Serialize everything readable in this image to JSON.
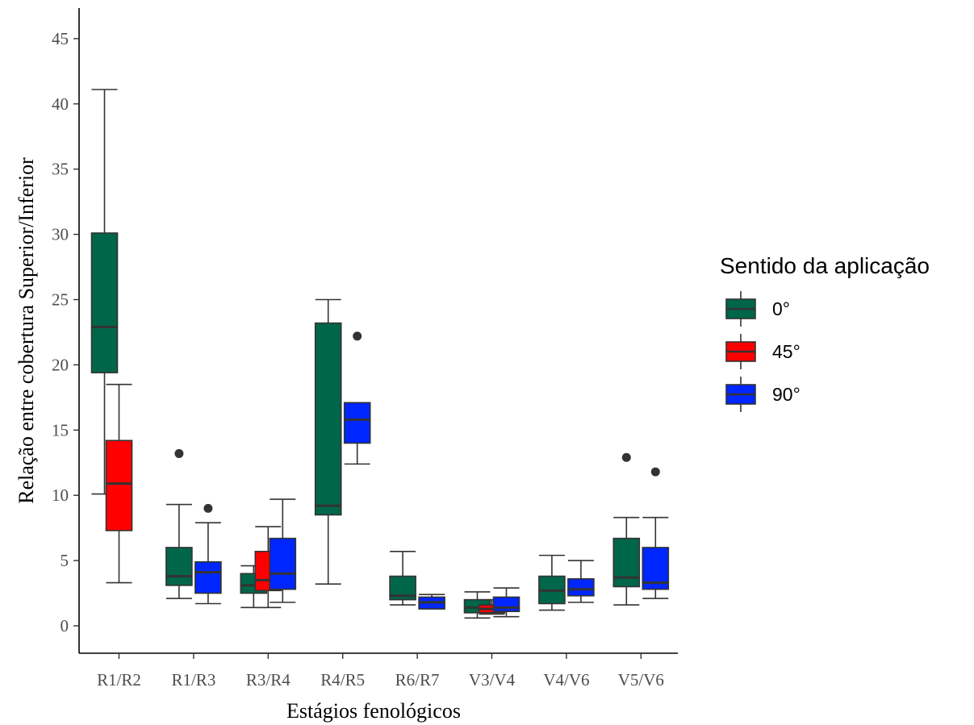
{
  "chart_data": {
    "type": "boxplot",
    "title": "",
    "xlabel": "Estágios fenológicos",
    "ylabel": "Relação entre cobertura Superior/Inferior",
    "ylim": [
      -2.2,
      47
    ],
    "yticks": [
      0,
      5,
      10,
      15,
      20,
      25,
      30,
      35,
      40,
      45
    ],
    "grid": false,
    "legend": {
      "title": "Sentido da aplicação",
      "placement": "right"
    },
    "categories": [
      "R1/R2",
      "R1/R3",
      "R3/R4",
      "R4/R5",
      "R6/R7",
      "V3/V4",
      "V4/V6",
      "V5/V6"
    ],
    "series": [
      {
        "name": "0°",
        "color": "#00664a",
        "boxes": [
          {
            "category": "R1/R2",
            "min": 10.1,
            "q1": 19.4,
            "median": 22.9,
            "q3": 30.1,
            "max": 41.1,
            "outliers": []
          },
          {
            "category": "R1/R3",
            "min": 2.1,
            "q1": 3.1,
            "median": 3.8,
            "q3": 6.0,
            "max": 9.3,
            "outliers": [
              13.2
            ]
          },
          {
            "category": "R3/R4",
            "min": 1.4,
            "q1": 2.5,
            "median": 3.1,
            "q3": 4.0,
            "max": 4.6,
            "outliers": []
          },
          {
            "category": "R4/R5",
            "min": 3.2,
            "q1": 8.5,
            "median": 9.2,
            "q3": 23.2,
            "max": 25.0,
            "outliers": []
          },
          {
            "category": "R6/R7",
            "min": 1.6,
            "q1": 2.0,
            "median": 2.3,
            "q3": 3.8,
            "max": 5.7,
            "outliers": []
          },
          {
            "category": "V3/V4",
            "min": 0.6,
            "q1": 1.0,
            "median": 1.4,
            "q3": 2.0,
            "max": 2.6,
            "outliers": []
          },
          {
            "category": "V4/V6",
            "min": 1.2,
            "q1": 1.7,
            "median": 2.7,
            "q3": 3.8,
            "max": 5.4,
            "outliers": []
          },
          {
            "category": "V5/V6",
            "min": 1.6,
            "q1": 3.0,
            "median": 3.7,
            "q3": 6.7,
            "max": 8.3,
            "outliers": [
              12.9
            ]
          }
        ]
      },
      {
        "name": "45°",
        "color": "#ff0000",
        "boxes": [
          {
            "category": "R1/R2",
            "min": 3.3,
            "q1": 7.3,
            "median": 10.9,
            "q3": 14.2,
            "max": 18.5,
            "outliers": []
          },
          {
            "category": "R3/R4",
            "min": 1.4,
            "q1": 2.7,
            "median": 3.5,
            "q3": 5.7,
            "max": 7.6,
            "outliers": []
          },
          {
            "category": "V3/V4",
            "min": 0.9,
            "q1": 1.0,
            "median": 1.3,
            "q3": 1.6,
            "max": 2.0,
            "outliers": []
          }
        ]
      },
      {
        "name": "90°",
        "color": "#0026ff",
        "boxes": [
          {
            "category": "R1/R3",
            "min": 1.7,
            "q1": 2.5,
            "median": 4.1,
            "q3": 4.9,
            "max": 7.9,
            "outliers": [
              9.0
            ]
          },
          {
            "category": "R3/R4",
            "min": 1.8,
            "q1": 2.8,
            "median": 4.0,
            "q3": 6.7,
            "max": 9.7,
            "outliers": []
          },
          {
            "category": "R4/R5",
            "min": 12.4,
            "q1": 14.0,
            "median": 15.8,
            "q3": 17.1,
            "max": 17.1,
            "outliers": [
              22.2
            ]
          },
          {
            "category": "R6/R7",
            "min": 1.3,
            "q1": 1.3,
            "median": 1.8,
            "q3": 2.2,
            "max": 2.4,
            "outliers": []
          },
          {
            "category": "V3/V4",
            "min": 0.7,
            "q1": 1.1,
            "median": 1.4,
            "q3": 2.2,
            "max": 2.9,
            "outliers": []
          },
          {
            "category": "V4/V6",
            "min": 1.8,
            "q1": 2.3,
            "median": 2.8,
            "q3": 3.6,
            "max": 5.0,
            "outliers": []
          },
          {
            "category": "V5/V6",
            "min": 2.1,
            "q1": 2.8,
            "median": 3.3,
            "q3": 6.0,
            "max": 8.3,
            "outliers": [
              11.8
            ]
          }
        ]
      }
    ]
  }
}
